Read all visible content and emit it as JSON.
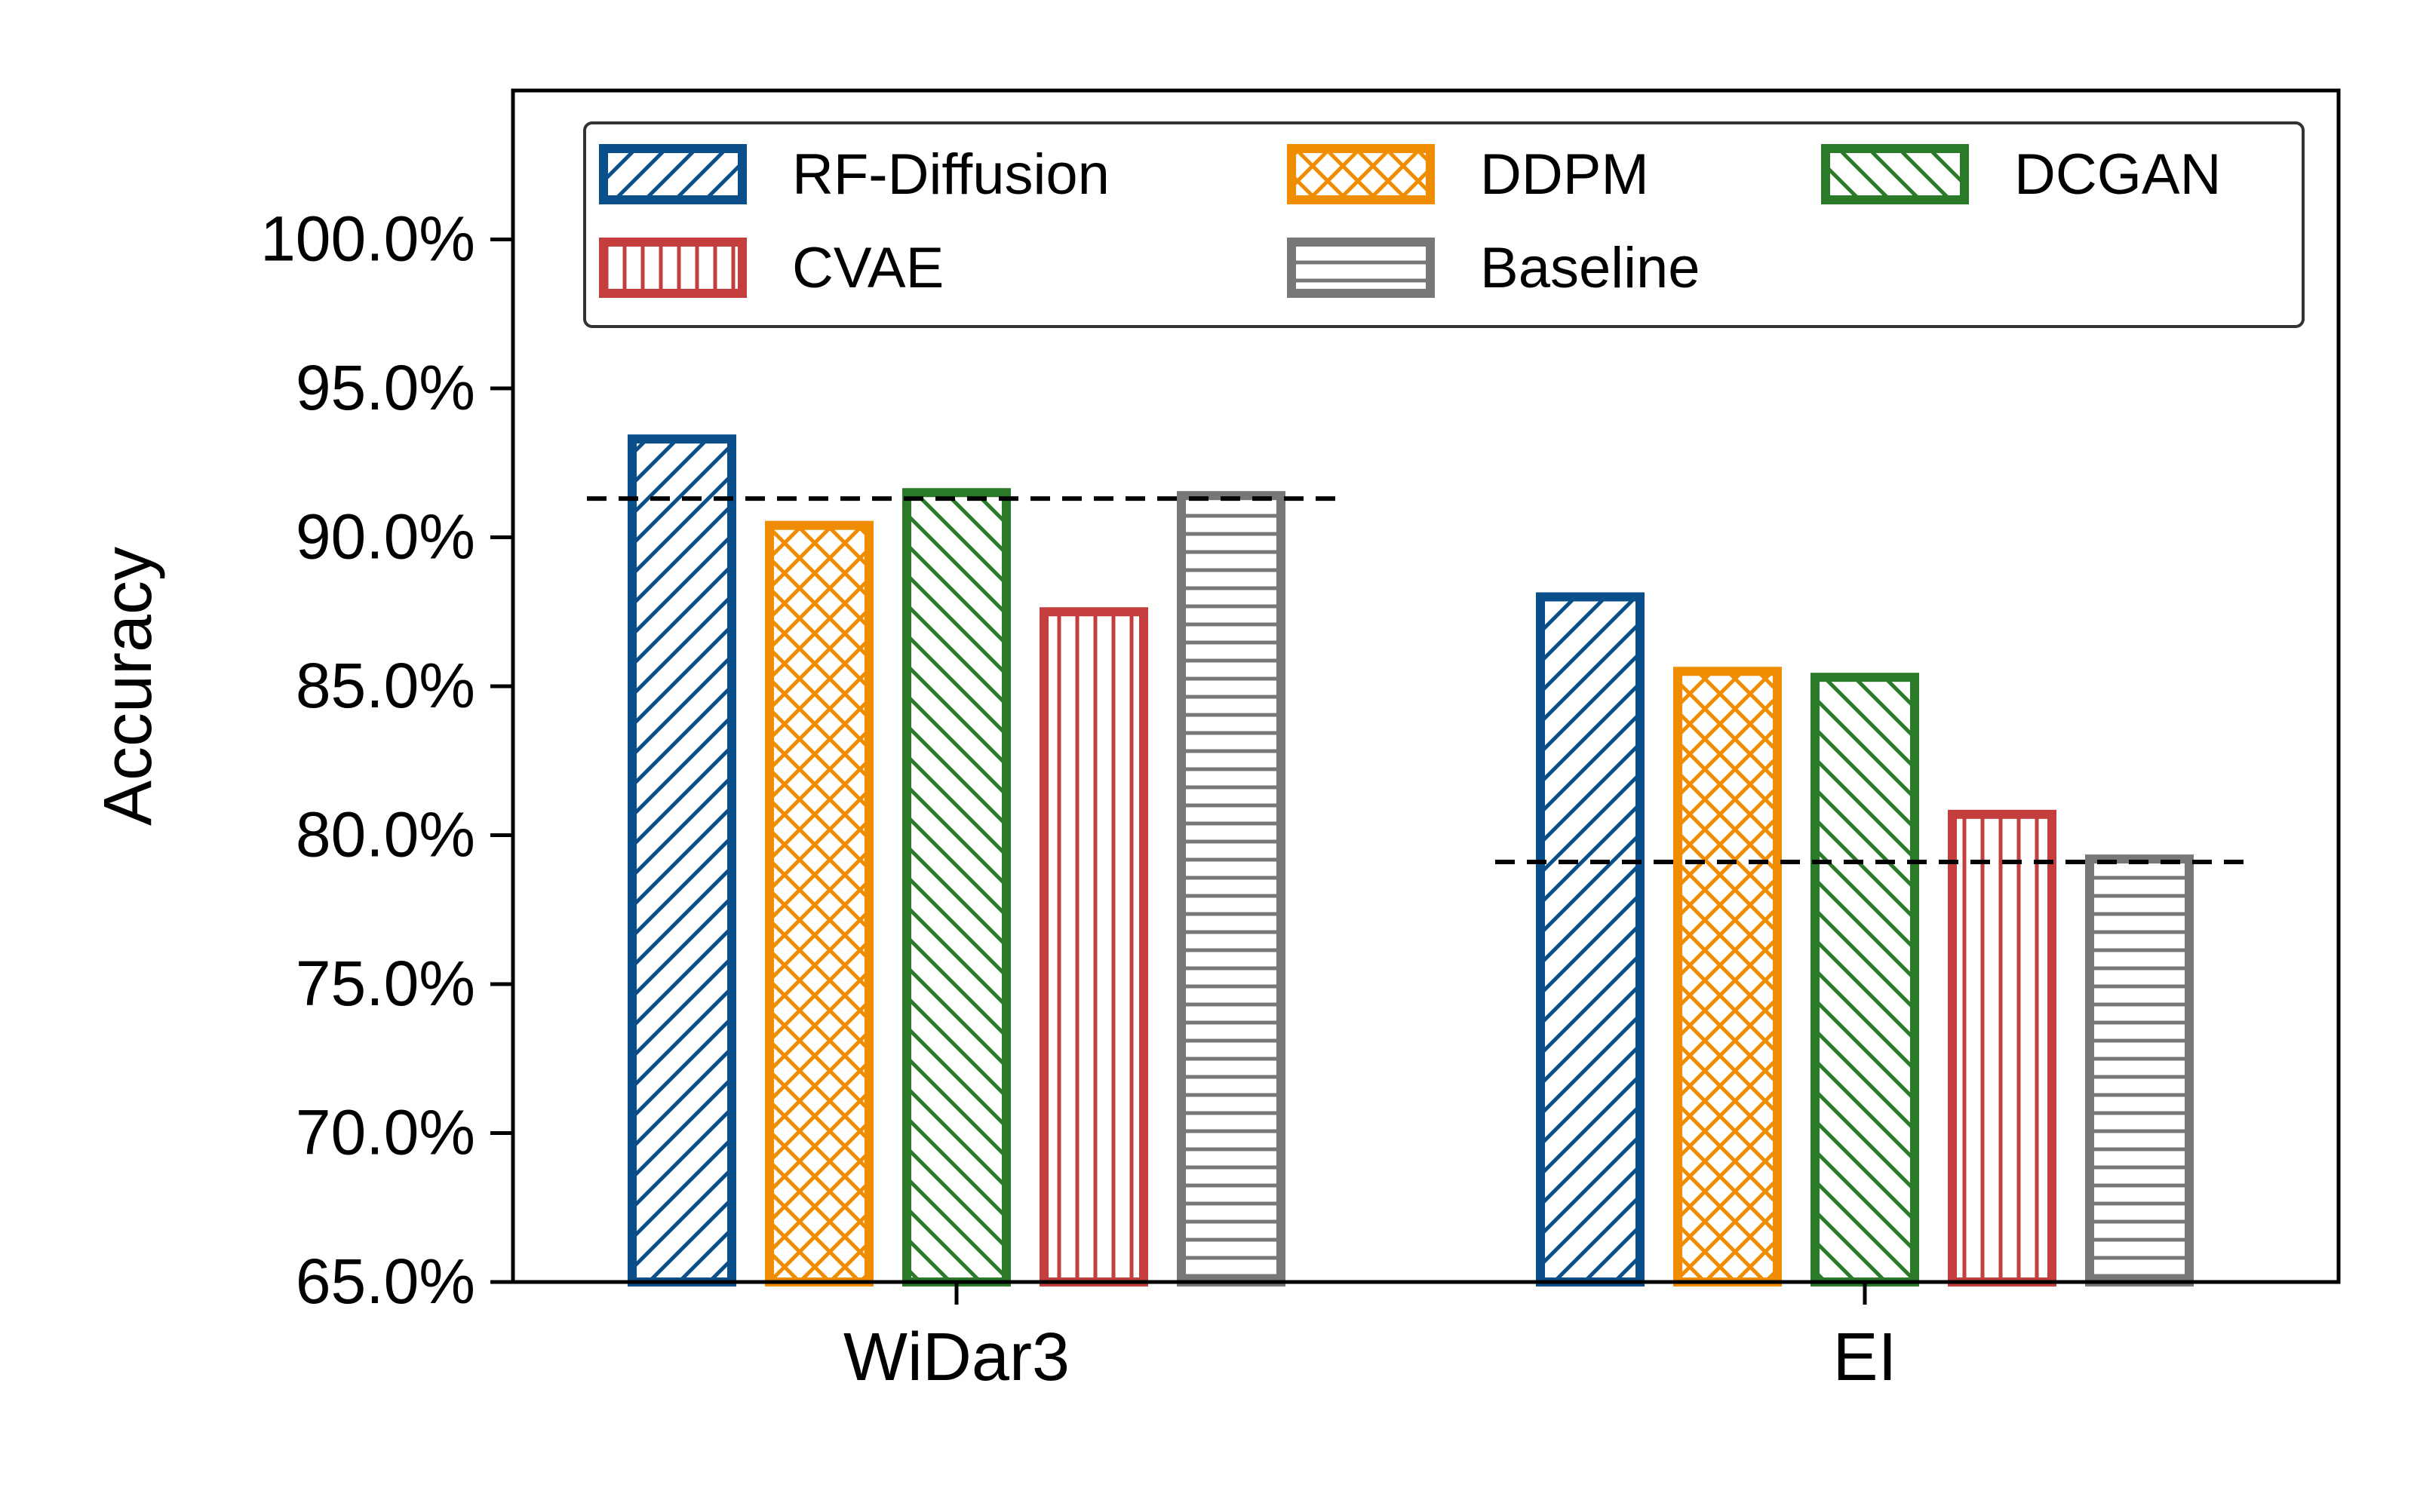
{
  "chart_data": {
    "type": "bar",
    "title": "",
    "xlabel": "",
    "ylabel": "Accuracy",
    "categories": [
      "WiDar3",
      "EI"
    ],
    "ylim": [
      65.0,
      105.0
    ],
    "yticks": [
      65.0,
      70.0,
      75.0,
      80.0,
      85.0,
      90.0,
      95.0,
      100.0
    ],
    "ytick_labels": [
      "65.0%",
      "70.0%",
      "75.0%",
      "80.0%",
      "85.0%",
      "90.0%",
      "95.0%",
      "100.0%"
    ],
    "grid": false,
    "legend_position": "top",
    "series": [
      {
        "name": "RF-Diffusion",
        "color": "#0b4f8a",
        "hatch": "diagonal-up",
        "values": [
          93.3,
          88.0
        ]
      },
      {
        "name": "DDPM",
        "color": "#f08c00",
        "hatch": "crosshatch",
        "values": [
          90.4,
          85.5
        ]
      },
      {
        "name": "DCGAN",
        "color": "#2a7a2a",
        "hatch": "diagonal-down",
        "values": [
          91.5,
          85.3
        ]
      },
      {
        "name": "CVAE",
        "color": "#c43e3e",
        "hatch": "vertical",
        "values": [
          87.5,
          80.7
        ]
      },
      {
        "name": "Baseline",
        "color": "#777777",
        "hatch": "horizontal",
        "values": [
          91.4,
          79.2
        ]
      }
    ],
    "reference_lines": [
      {
        "category": "WiDar3",
        "value": 91.3
      },
      {
        "category": "EI",
        "value": 79.1
      }
    ]
  }
}
